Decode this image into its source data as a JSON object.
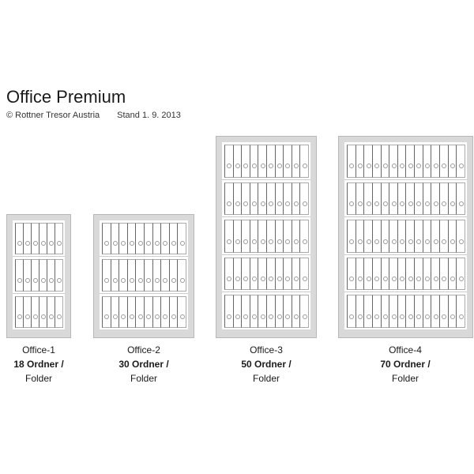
{
  "header": {
    "title": "Office Premium",
    "copyright": "© Rottner Tresor Austria",
    "date": "Stand 1. 9. 2013"
  },
  "safes": [
    {
      "name": "Office-1",
      "capacity": "18 Ordner /",
      "unit": "Folder",
      "shelves": 3,
      "binders_per_shelf": 6
    },
    {
      "name": "Office-2",
      "capacity": "30 Ordner /",
      "unit": "Folder",
      "shelves": 3,
      "binders_per_shelf": 10
    },
    {
      "name": "Office-3",
      "capacity": "50 Ordner /",
      "unit": "Folder",
      "shelves": 5,
      "binders_per_shelf": 10
    },
    {
      "name": "Office-4",
      "capacity": "70 Ordner /",
      "unit": "Folder",
      "shelves": 5,
      "binders_per_shelf": 14
    }
  ]
}
